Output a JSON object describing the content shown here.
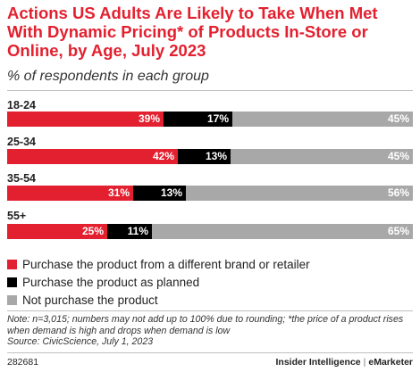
{
  "colors": {
    "brand": "#e3202f",
    "purchase_different": "#e3202f",
    "purchase_planned": "#000000",
    "not_purchase": "#a8a8a8"
  },
  "footer": {
    "chart_id": "282681",
    "brand_left": "Insider Intelligence",
    "brand_sep": "|",
    "brand_right": "eMarketer"
  },
  "note": {
    "line1": "Note: n=3,015; numbers may not add up to 100% due to rounding; *the price of a product rises when demand is high and drops when demand is low",
    "source": "Source: CivicScience, July 1, 2023"
  },
  "chart_data": {
    "type": "bar",
    "orientation": "horizontal-stacked-100",
    "title": "Actions US Adults Are Likely to Take When Met With Dynamic Pricing* of Products In-Store or Online, by Age, July 2023",
    "subtitle": "% of respondents in each group",
    "categories": [
      "18-24",
      "25-34",
      "35-54",
      "55+"
    ],
    "series": [
      {
        "name": "Purchase the product from a different brand or retailer",
        "values": [
          39,
          42,
          31,
          25
        ],
        "color": "#e3202f",
        "label_color": "#ffffff"
      },
      {
        "name": "Purchase the product as planned",
        "values": [
          17,
          13,
          13,
          11
        ],
        "color": "#000000",
        "label_color": "#ffffff"
      },
      {
        "name": "Not purchase the product",
        "values": [
          45,
          45,
          56,
          65
        ],
        "color": "#a8a8a8",
        "label_color": "#ffffff"
      }
    ],
    "value_suffix": "%",
    "legend_position": "bottom",
    "grid": false
  }
}
